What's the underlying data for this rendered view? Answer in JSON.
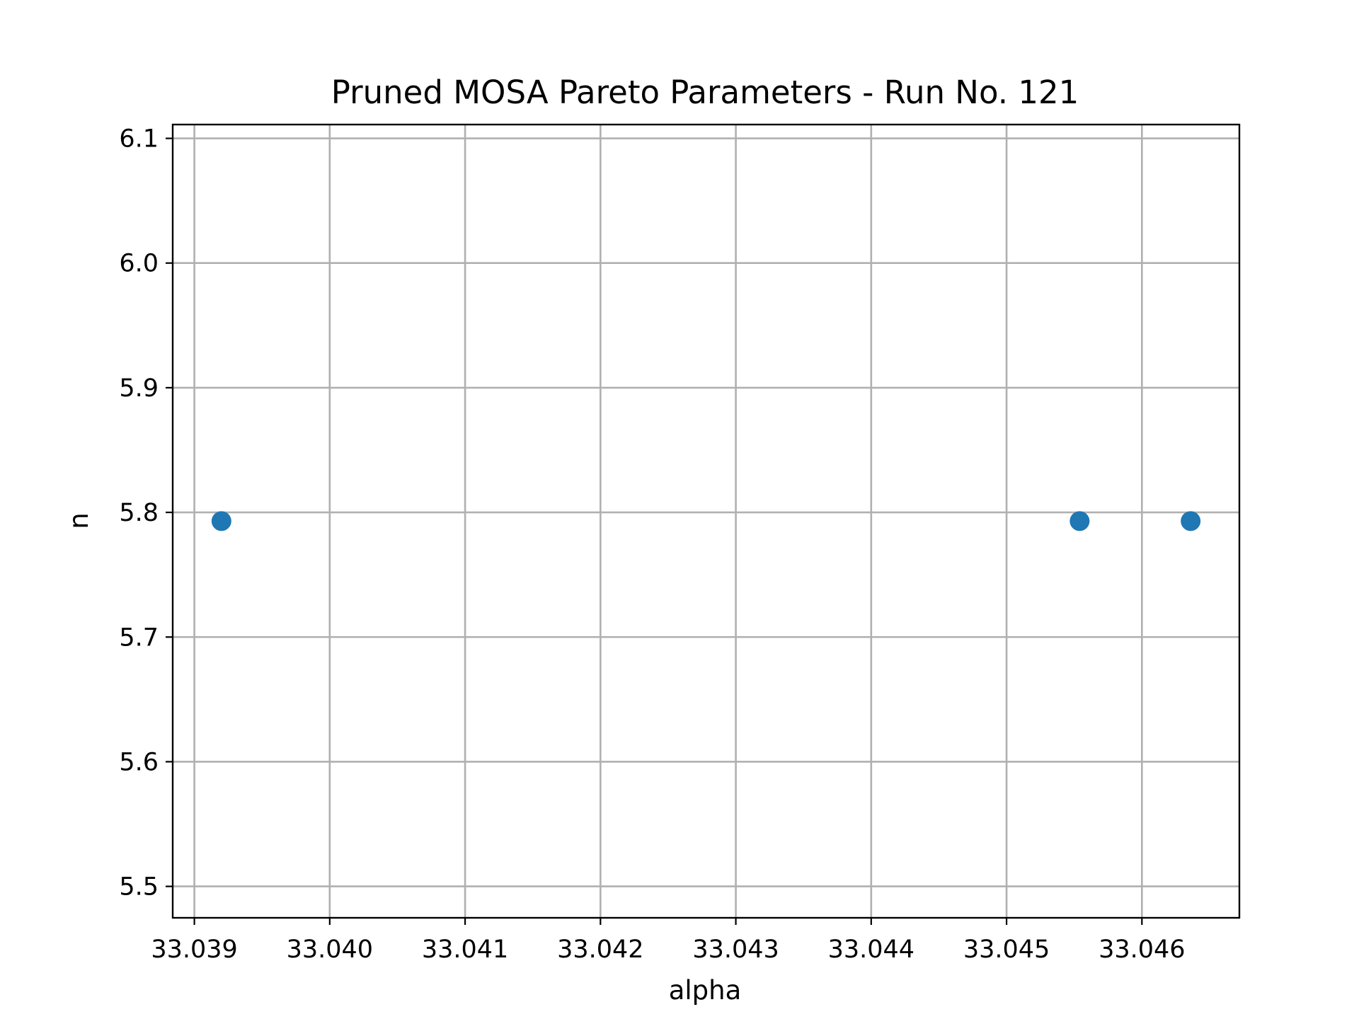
{
  "chart_data": {
    "type": "scatter",
    "title": "Pruned MOSA Pareto Parameters - Run No. 121",
    "xlabel": "alpha",
    "ylabel": "n",
    "xlim": [
      33.03884,
      33.04672
    ],
    "ylim": [
      5.4748,
      6.1111
    ],
    "x_ticks": [
      "33.039",
      "33.040",
      "33.041",
      "33.042",
      "33.043",
      "33.044",
      "33.045",
      "33.046"
    ],
    "x_tick_values": [
      33.039,
      33.04,
      33.041,
      33.042,
      33.043,
      33.044,
      33.045,
      33.046
    ],
    "y_ticks": [
      "5.5",
      "5.6",
      "5.7",
      "5.8",
      "5.9",
      "6.0",
      "6.1"
    ],
    "y_tick_values": [
      5.5,
      5.6,
      5.7,
      5.8,
      5.9,
      6.0,
      6.1
    ],
    "grid": true,
    "series": [
      {
        "color": "#1f77b4",
        "points": [
          {
            "x": 33.0392,
            "y": 5.793
          },
          {
            "x": 33.04554,
            "y": 5.793
          },
          {
            "x": 33.04636,
            "y": 5.793
          }
        ]
      }
    ]
  }
}
